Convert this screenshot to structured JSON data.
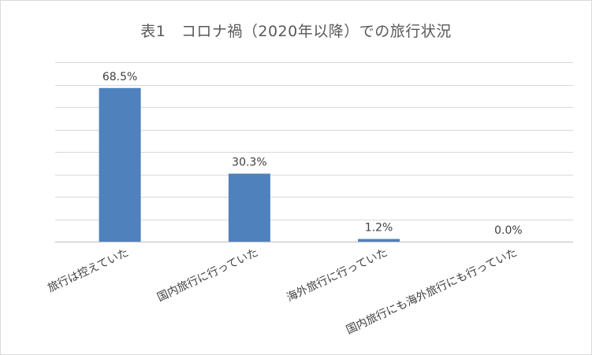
{
  "chart_data": {
    "type": "bar",
    "title": "表1　コロナ禍（2020年以降）での旅行状況",
    "categories": [
      "旅行は控えていた",
      "国内旅行に行っていた",
      "海外旅行に行っていた",
      "国内旅行にも海外旅行にも行っていた"
    ],
    "values": [
      68.5,
      30.3,
      1.2,
      0.0
    ],
    "data_labels": [
      "68.5%",
      "30.3%",
      "1.2%",
      "0.0%"
    ],
    "ylim": [
      0,
      80
    ],
    "grid": true,
    "legend": "none",
    "colors": {
      "bar": "#4f81bd",
      "grid": "#d9d9d9",
      "text": "#404040",
      "title": "#595959"
    }
  }
}
